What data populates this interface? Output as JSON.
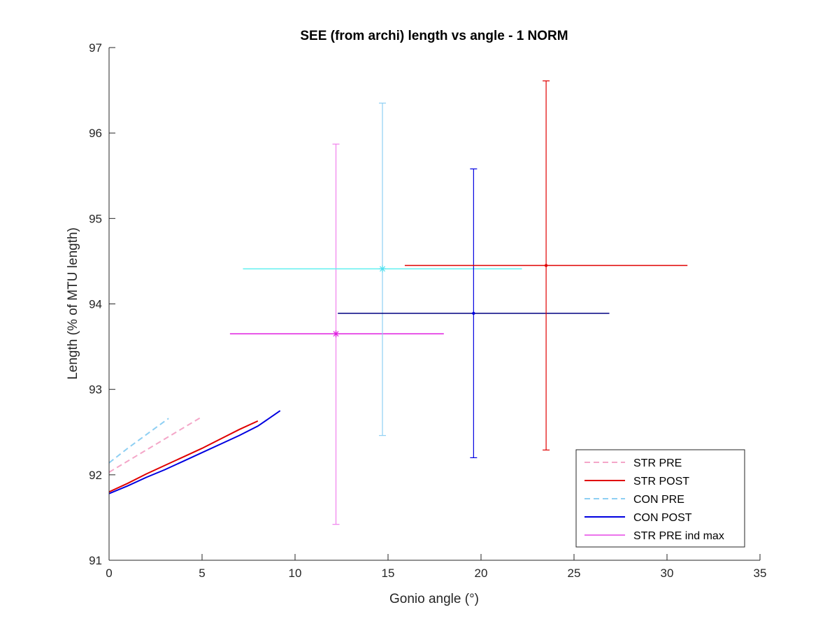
{
  "chart_data": {
    "type": "line",
    "title": "SEE (from archi) length vs angle - 1 NORM",
    "xlabel": "Gonio angle (°)",
    "ylabel": "Length (% of MTU length)",
    "xlim": [
      0,
      35
    ],
    "ylim": [
      91,
      97
    ],
    "x_ticks": [
      0,
      5,
      10,
      15,
      20,
      25,
      30,
      35
    ],
    "y_ticks": [
      91,
      92,
      93,
      94,
      95,
      96,
      97
    ],
    "grid": false,
    "legend_position": "bottom-right",
    "series": [
      {
        "name": "STR PRE",
        "color": "#f4a6c8",
        "dash": "dashed",
        "x": [
          0,
          1,
          2,
          3,
          4,
          5
        ],
        "y": [
          92.03,
          92.16,
          92.29,
          92.42,
          92.55,
          92.68
        ]
      },
      {
        "name": "STR POST",
        "color": "#e00000",
        "dash": "solid",
        "x": [
          0,
          1,
          2,
          3,
          4,
          5,
          6,
          7,
          8
        ],
        "y": [
          91.8,
          91.9,
          92.01,
          92.11,
          92.21,
          92.31,
          92.42,
          92.53,
          92.63
        ]
      },
      {
        "name": "CON PRE",
        "color": "#8ecff3",
        "dash": "dashed",
        "x": [
          0,
          1,
          2,
          3.2
        ],
        "y": [
          92.14,
          92.31,
          92.47,
          92.66
        ]
      },
      {
        "name": "CON POST",
        "color": "#0000e0",
        "dash": "solid",
        "x": [
          0,
          1,
          2,
          3,
          4,
          5,
          6,
          7,
          8,
          9.2
        ],
        "y": [
          91.78,
          91.87,
          91.97,
          92.06,
          92.16,
          92.26,
          92.36,
          92.46,
          92.57,
          92.75
        ]
      },
      {
        "name": "STR PRE ind max",
        "color": "#e020e0",
        "dash": "solid",
        "x": [],
        "y": []
      }
    ],
    "error_points": [
      {
        "x": 12.2,
        "y": 93.65,
        "xerr": [
          6.5,
          18.0
        ],
        "yerr": [
          91.42,
          95.87
        ],
        "h_color": "#e020e0",
        "v_color": "#f080ec",
        "marker": "asterisk",
        "marker_color": "#e020e0"
      },
      {
        "x": 14.7,
        "y": 94.41,
        "xerr": [
          7.2,
          22.2
        ],
        "yerr": [
          92.46,
          96.35
        ],
        "h_color": "#60f0f0",
        "v_color": "#8ecff3",
        "marker": "asterisk",
        "marker_color": "#50e0f0"
      },
      {
        "x": 19.6,
        "y": 93.89,
        "xerr": [
          12.3,
          26.9
        ],
        "yerr": [
          92.2,
          95.58
        ],
        "h_color": "#000080",
        "v_color": "#0000e0",
        "marker": "dot",
        "marker_color": "#0000e0"
      },
      {
        "x": 23.5,
        "y": 94.45,
        "xerr": [
          15.9,
          31.1
        ],
        "yerr": [
          92.29,
          96.61
        ],
        "h_color": "#e00000",
        "v_color": "#e00000",
        "marker": "dot",
        "marker_color": "#e00000"
      }
    ]
  }
}
